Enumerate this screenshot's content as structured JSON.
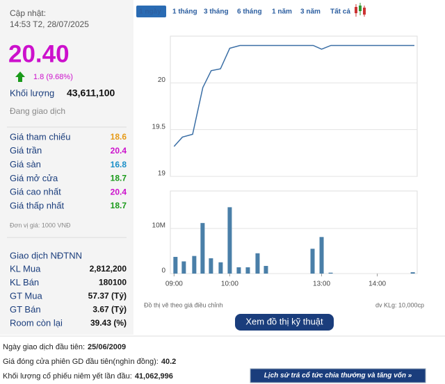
{
  "header": {
    "updated_label": "Cập nhật:",
    "updated_time": "14:53 T2, 28/07/2025",
    "price": "20.40",
    "change": "1.8 (9.68%)",
    "volume_label": "Khối lượng",
    "volume": "43,611,100",
    "status": "Đang giao dịch"
  },
  "prices": [
    {
      "label": "Giá tham chiếu",
      "value": "18.6",
      "color": "#e69a17"
    },
    {
      "label": "Giá trần",
      "value": "20.4",
      "color": "#cc10cc"
    },
    {
      "label": "Giá sàn",
      "value": "16.8",
      "color": "#1a8fc8"
    },
    {
      "label": "Giá mở cửa",
      "value": "18.7",
      "color": "#1a9a1a"
    },
    {
      "label": "Giá cao nhất",
      "value": "20.4",
      "color": "#cc10cc"
    },
    {
      "label": "Giá thấp nhất",
      "value": "18.7",
      "color": "#1a9a1a"
    }
  ],
  "price_unit": "Đơn vị giá: 1000 VNĐ",
  "foreign": {
    "title": "Giao dịch NĐTNN",
    "rows": [
      {
        "label": "KL Mua",
        "value": "2,812,200"
      },
      {
        "label": "KL Bán",
        "value": "180100"
      },
      {
        "label": "GT Mua",
        "value": "57.37 (Tỷ)"
      },
      {
        "label": "GT Bán",
        "value": "3.67 (Tỷ)"
      },
      {
        "label": "Room còn lại",
        "value": "39.43 (%)"
      }
    ]
  },
  "tabs": [
    "1 ngày",
    "1 tháng",
    "3 tháng",
    "6 tháng",
    "1 năm",
    "3 năm",
    "Tất cả"
  ],
  "chart_data": [
    {
      "type": "line",
      "x": [
        0,
        9,
        20,
        31,
        40,
        50,
        60,
        71,
        150,
        159,
        169,
        259
      ],
      "values": [
        19.32,
        19.42,
        19.45,
        19.95,
        20.13,
        20.15,
        20.37,
        20.4,
        20.4,
        20.36,
        20.4,
        20.4
      ],
      "color": "#3a6ea5",
      "xlim": [
        -4,
        262
      ],
      "ylim": [
        19,
        20.5
      ],
      "yticks": [
        19,
        19.5,
        20
      ],
      "grid": true
    },
    {
      "type": "bar",
      "x": [
        1.5,
        10.5,
        21.75,
        30.75,
        39.75,
        50.25,
        60,
        69.75,
        79.5,
        90,
        99,
        149.25,
        159,
        168.75,
        257.25
      ],
      "values": [
        3.7,
        2.7,
        3.9,
        11.2,
        3.4,
        2.5,
        14.7,
        1.4,
        1.4,
        4.5,
        1.7,
        5.5,
        8.1,
        0.2,
        0.3
      ],
      "color": "#4a7fa8",
      "xlim": [
        -4,
        262
      ],
      "ylim": [
        0,
        18.3
      ],
      "yticks": [
        0,
        {
          "value": 10,
          "label": "10M"
        }
      ],
      "xticks": [
        {
          "value": 0,
          "label": "09:00"
        },
        {
          "value": 60,
          "label": "10:00"
        },
        {
          "value": 159,
          "label": "13:00"
        },
        {
          "value": 219,
          "label": "14:00"
        }
      ]
    }
  ],
  "notes": {
    "left": "Đồ thị vẽ theo giá điều chỉnh",
    "right": "dv KLg: 10,000cp"
  },
  "button": "Xem đồ thị kỹ thuật",
  "footer": {
    "rows": [
      {
        "label": "Ngày giao dịch đầu tiên:",
        "value": "25/06/2009"
      },
      {
        "label": "Giá đóng cửa phiên GD đầu tiên(nghìn đồng):",
        "value": "40.2"
      },
      {
        "label": "Khối lượng cổ phiếu niêm yết lần đầu:",
        "value": "41,062,996"
      }
    ],
    "link": "Lịch sử trả cổ tức chia thưởng và tăng vốn »"
  }
}
